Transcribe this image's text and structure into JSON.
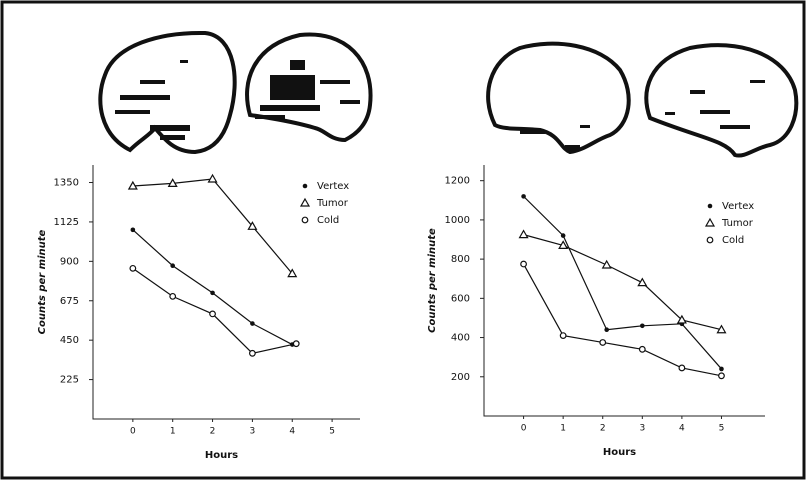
{
  "chart_data": [
    {
      "type": "line",
      "y_label": "Counts per minute",
      "x_label": "Hours",
      "xlim": [
        -1,
        5.7
      ],
      "ylim": [
        0,
        1450
      ],
      "xticks": [
        0,
        1,
        2,
        3,
        4,
        5
      ],
      "yticks": [
        225,
        450,
        675,
        900,
        1125,
        1350
      ],
      "legend": "upper right",
      "series": [
        {
          "name": "Vertex",
          "color": "#111111",
          "marker": "dot",
          "x": [
            0,
            1,
            2,
            3,
            4
          ],
          "values": [
            1080,
            875,
            720,
            545,
            425
          ]
        },
        {
          "name": "Tumor",
          "color": "#111111",
          "marker": "triangle",
          "x": [
            0,
            1,
            2,
            3,
            4
          ],
          "values": [
            1330,
            1345,
            1370,
            1100,
            830
          ]
        },
        {
          "name": "Cold",
          "color": "#111111",
          "marker": "circle",
          "x": [
            0,
            1,
            2,
            3,
            4.1
          ],
          "values": [
            860,
            700,
            600,
            375,
            430
          ]
        }
      ]
    },
    {
      "type": "line",
      "y_label": "Counts per minute",
      "x_label": "Hours",
      "xlim": [
        -1,
        6.1
      ],
      "ylim": [
        0,
        1280
      ],
      "xticks": [
        0,
        1,
        2,
        3,
        4,
        5
      ],
      "yticks": [
        200,
        400,
        600,
        800,
        1000,
        1200
      ],
      "legend": "upper right",
      "series": [
        {
          "name": "Vertex",
          "color": "#111111",
          "marker": "dot",
          "x": [
            0,
            1,
            2.1,
            3,
            4,
            5
          ],
          "values": [
            1120,
            920,
            440,
            460,
            470,
            240
          ]
        },
        {
          "name": "Tumor",
          "color": "#111111",
          "marker": "triangle",
          "x": [
            0,
            1,
            2.1,
            3,
            4,
            5
          ],
          "values": [
            925,
            870,
            770,
            680,
            490,
            440
          ]
        },
        {
          "name": "Cold",
          "color": "#111111",
          "marker": "circle",
          "x": [
            0,
            1,
            2,
            3,
            4,
            5
          ],
          "values": [
            775,
            410,
            375,
            340,
            245,
            205
          ]
        }
      ]
    }
  ]
}
